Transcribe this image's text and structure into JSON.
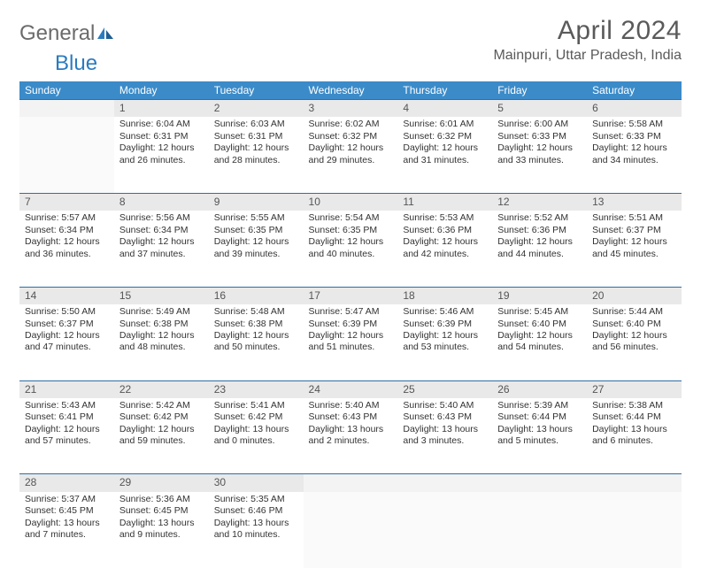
{
  "brand": {
    "part1": "General",
    "part2": "Blue"
  },
  "title": "April 2024",
  "location": "Mainpuri, Uttar Pradesh, India",
  "colors": {
    "header_bg": "#3b8bc9",
    "header_text": "#ffffff",
    "daynum_bg": "#e9e9e9",
    "rule": "#2f6fa3",
    "text": "#333333",
    "title_text": "#5a5a5a",
    "logo_gray": "#6b6b6b",
    "logo_blue": "#2b7bbf"
  },
  "typography": {
    "title_fontsize": 30,
    "location_fontsize": 16,
    "dayhead_fontsize": 12,
    "cell_fontsize": 10.5
  },
  "dayHeaders": [
    "Sunday",
    "Monday",
    "Tuesday",
    "Wednesday",
    "Thursday",
    "Friday",
    "Saturday"
  ],
  "weeks": [
    [
      null,
      {
        "n": "1",
        "sr": "6:04 AM",
        "ss": "6:31 PM",
        "dl": "12 hours and 26 minutes."
      },
      {
        "n": "2",
        "sr": "6:03 AM",
        "ss": "6:31 PM",
        "dl": "12 hours and 28 minutes."
      },
      {
        "n": "3",
        "sr": "6:02 AM",
        "ss": "6:32 PM",
        "dl": "12 hours and 29 minutes."
      },
      {
        "n": "4",
        "sr": "6:01 AM",
        "ss": "6:32 PM",
        "dl": "12 hours and 31 minutes."
      },
      {
        "n": "5",
        "sr": "6:00 AM",
        "ss": "6:33 PM",
        "dl": "12 hours and 33 minutes."
      },
      {
        "n": "6",
        "sr": "5:58 AM",
        "ss": "6:33 PM",
        "dl": "12 hours and 34 minutes."
      }
    ],
    [
      {
        "n": "7",
        "sr": "5:57 AM",
        "ss": "6:34 PM",
        "dl": "12 hours and 36 minutes."
      },
      {
        "n": "8",
        "sr": "5:56 AM",
        "ss": "6:34 PM",
        "dl": "12 hours and 37 minutes."
      },
      {
        "n": "9",
        "sr": "5:55 AM",
        "ss": "6:35 PM",
        "dl": "12 hours and 39 minutes."
      },
      {
        "n": "10",
        "sr": "5:54 AM",
        "ss": "6:35 PM",
        "dl": "12 hours and 40 minutes."
      },
      {
        "n": "11",
        "sr": "5:53 AM",
        "ss": "6:36 PM",
        "dl": "12 hours and 42 minutes."
      },
      {
        "n": "12",
        "sr": "5:52 AM",
        "ss": "6:36 PM",
        "dl": "12 hours and 44 minutes."
      },
      {
        "n": "13",
        "sr": "5:51 AM",
        "ss": "6:37 PM",
        "dl": "12 hours and 45 minutes."
      }
    ],
    [
      {
        "n": "14",
        "sr": "5:50 AM",
        "ss": "6:37 PM",
        "dl": "12 hours and 47 minutes."
      },
      {
        "n": "15",
        "sr": "5:49 AM",
        "ss": "6:38 PM",
        "dl": "12 hours and 48 minutes."
      },
      {
        "n": "16",
        "sr": "5:48 AM",
        "ss": "6:38 PM",
        "dl": "12 hours and 50 minutes."
      },
      {
        "n": "17",
        "sr": "5:47 AM",
        "ss": "6:39 PM",
        "dl": "12 hours and 51 minutes."
      },
      {
        "n": "18",
        "sr": "5:46 AM",
        "ss": "6:39 PM",
        "dl": "12 hours and 53 minutes."
      },
      {
        "n": "19",
        "sr": "5:45 AM",
        "ss": "6:40 PM",
        "dl": "12 hours and 54 minutes."
      },
      {
        "n": "20",
        "sr": "5:44 AM",
        "ss": "6:40 PM",
        "dl": "12 hours and 56 minutes."
      }
    ],
    [
      {
        "n": "21",
        "sr": "5:43 AM",
        "ss": "6:41 PM",
        "dl": "12 hours and 57 minutes."
      },
      {
        "n": "22",
        "sr": "5:42 AM",
        "ss": "6:42 PM",
        "dl": "12 hours and 59 minutes."
      },
      {
        "n": "23",
        "sr": "5:41 AM",
        "ss": "6:42 PM",
        "dl": "13 hours and 0 minutes."
      },
      {
        "n": "24",
        "sr": "5:40 AM",
        "ss": "6:43 PM",
        "dl": "13 hours and 2 minutes."
      },
      {
        "n": "25",
        "sr": "5:40 AM",
        "ss": "6:43 PM",
        "dl": "13 hours and 3 minutes."
      },
      {
        "n": "26",
        "sr": "5:39 AM",
        "ss": "6:44 PM",
        "dl": "13 hours and 5 minutes."
      },
      {
        "n": "27",
        "sr": "5:38 AM",
        "ss": "6:44 PM",
        "dl": "13 hours and 6 minutes."
      }
    ],
    [
      {
        "n": "28",
        "sr": "5:37 AM",
        "ss": "6:45 PM",
        "dl": "13 hours and 7 minutes."
      },
      {
        "n": "29",
        "sr": "5:36 AM",
        "ss": "6:45 PM",
        "dl": "13 hours and 9 minutes."
      },
      {
        "n": "30",
        "sr": "5:35 AM",
        "ss": "6:46 PM",
        "dl": "13 hours and 10 minutes."
      },
      null,
      null,
      null,
      null
    ]
  ],
  "labels": {
    "sunrise": "Sunrise:",
    "sunset": "Sunset:",
    "daylight": "Daylight:"
  }
}
